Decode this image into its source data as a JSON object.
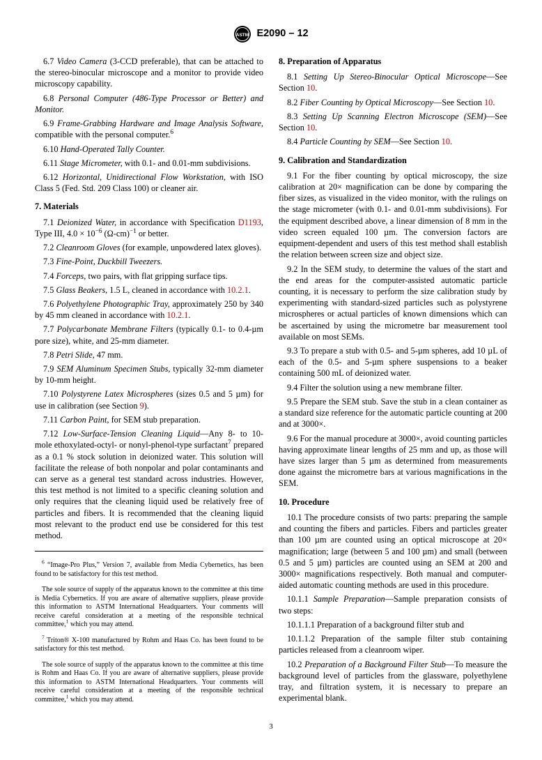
{
  "header": {
    "designation": "E2090 – 12"
  },
  "left": {
    "p6_7": "6.7 <span class=\"italic\">Video Camera</span> (3-CCD preferable)<span class=\"italic\">,</span> that can be attached to the stereo-binocular microscope and a monitor to provide video microscopy capability.",
    "p6_8": "6.8 <span class=\"italic\">Personal Computer (486-Type Processor or Better) and Monitor.</span>",
    "p6_9": "6.9 <span class=\"italic\">Frame-Grabbing Hardware and Image Analysis Software,</span> compatible with the personal computer.<sup>6</sup>",
    "p6_10": "6.10 <span class=\"italic\">Hand-Operated Tally Counter.</span>",
    "p6_11": "6.11 <span class=\"italic\">Stage Micrometer,</span> with 0.1- and 0.01-mm subdivisions.",
    "p6_12": "6.12 <span class=\"italic\">Horizontal, Unidirectional Flow Workstation,</span> with ISO Class 5 (Fed. Std. 209 Class 100) or cleaner air.",
    "s7_head": "7. Materials",
    "p7_1": "7.1 <span class=\"italic\">Deionized Water,</span> in accordance with Specification <span class=\"xref\">D1193</span>, Type III, 4.0 × 10<sup>−6</sup> (Ω-cm)<sup>−1</sup> or better.",
    "p7_2": "7.2 <span class=\"italic\">Cleanroom Gloves</span> (for example, unpowdered latex gloves).",
    "p7_3": "7.3 <span class=\"italic\">Fine-Point, Duckbill Tweezers.</span>",
    "p7_4": "7.4 <span class=\"italic\">Forceps,</span> two pairs, with flat gripping surface tips.",
    "p7_5": "7.5 <span class=\"italic\">Glass Beakers,</span> 1.5 L, cleaned in accordance with <span class=\"xref\">10.2.1</span>.",
    "p7_6": "7.6 <span class=\"italic\">Polyethylene Photographic Tray,</span> approximately 250 by 340 by 45 mm cleaned in accordance with <span class=\"xref\">10.2.1</span>.",
    "p7_7": "7.7 <span class=\"italic\">Polycarbonate Membrane Filters</span> (typically 0.1- to 0.4-µm pore size), white, and 25-mm diameter.",
    "p7_8": "7.8 <span class=\"italic\">Petri Slide,</span> 47 mm.",
    "p7_9": "7.9 <span class=\"italic\">SEM Aluminum Specimen Stubs,</span> typically 32-mm diameter by 10-mm height.",
    "p7_10": "7.10 <span class=\"italic\">Polystyrene Latex Microspheres</span> (sizes 0.5 and 5 µm) for use in calibration (see Section <span class=\"xref\">9</span>).",
    "p7_11": "7.11 <span class=\"italic\">Carbon Paint,</span> for SEM stub preparation.",
    "p7_12": "7.12 <span class=\"italic\">Low-Surface-Tension Cleaning Liquid</span>—Any 8- to 10-mole ethoxylated-octyl- or nonyl-phenol-type surfactant<sup>7</sup> prepared as a 0.1 % stock solution in deionized water. This solution will facilitate the release of both nonpolar and polar contaminants and can serve as a general test standard across industries. However, this test method is not limited to a specific cleaning solution and only requires that the cleaning liquid used be relatively free of particles and fibers. It is recommended that the cleaning liquid most relevant to the product end use be considered for this test method.",
    "fn6a": "<sup>6</sup> “Image-Pro Plus,” Version 7, available from Media Cybernetics, has been found to be satisfactory for this test method.",
    "fn6b": "The sole source of supply of the apparatus known to the committee at this time is Media Cybernetics. If you are aware of alternative suppliers, please provide this information to ASTM International Headquarters. Your comments will receive careful consideration at a meeting of the responsible technical committee,<sup>1</sup> which you may attend.",
    "fn7a": "<sup>7</sup> Triton® X-100 manufactured by Rohm and Haas Co. has been found to be satisfactory for this test method.",
    "fn7b": "The sole source of supply of the apparatus known to the committee at this time is Rohm and Haas Co. If you are aware of alternative suppliers, please provide this information to ASTM International Headquarters. Your comments will receive careful consideration at a meeting of the responsible technical committee,<sup>1</sup> which you may attend."
  },
  "right": {
    "s8_head": "8. Preparation of Apparatus",
    "p8_1": "8.1 <span class=\"italic\">Setting Up Stereo-Binocular Optical Microscope</span>—See Section <span class=\"xref\">10</span>.",
    "p8_2": "8.2 <span class=\"italic\">Fiber Counting by Optical Microscopy</span>—See Section <span class=\"xref\">10</span>.",
    "p8_3": "8.3 <span class=\"italic\">Setting Up Scanning Electron Microscope (SEM)</span>—See Section <span class=\"xref\">10</span>.",
    "p8_4": "8.4 <span class=\"italic\">Particle Counting by SEM</span>—See Section <span class=\"xref\">10</span>.",
    "s9_head": "9. Calibration and Standardization",
    "p9_1": "9.1 For the fiber counting by optical microscopy, the size calibration at 20× magnification can be done by comparing the fiber sizes, as visualized in the video monitor, with the rulings on the stage micrometer (with 0.1- and 0.01-mm subdivisions). For the equipment described above, a linear dimension of 8 mm in the video screen equaled 100 µm. The conversion factors are equipment-dependent and users of this test method shall establish the relation between screen size and object size.",
    "p9_2": "9.2 In the SEM study, to determine the values of the start and the end areas for the computer-assisted automatic particle counting, it is necessary to perform the size calibration study by experimenting with standard-sized particles such as polystyrene microspheres or actual particles of known dimensions which can be ascertained by using the micrometre bar measurement tool available on most SEMs.",
    "p9_3": "9.3 To prepare a stub with 0.5- and 5-µm spheres, add 10 µL of each of the 0.5- and 5-µm sphere suspensions to a beaker containing 500 mL of deionized water.",
    "p9_4": "9.4 Filter the solution using a new membrane filter.",
    "p9_5": "9.5 Prepare the SEM stub. Save the stub in a clean container as a standard size reference for the automatic particle counting at 200 and at 3000×.",
    "p9_6": "9.6 For the manual procedure at 3000×, avoid counting particles having approximate linear lengths of 25 mm and up, as those will have sizes larger than 5 µm as determined from measurements done against the micrometre bars at various magnifications in the SEM.",
    "s10_head": "10. Procedure",
    "p10_1": "10.1 The procedure consists of two parts: preparing the sample and counting the fibers and particles. Fibers and particles greater than 100 µm are counted using an optical microscope at 20× magnification; large (between 5 and 100 µm) and small (between 0.5 and 5 µm) particles are counted using an SEM at 200 and 3000× magnifications respectively. Both manual and computer-aided automatic counting methods are used in this procedure.",
    "p10_1_1": "10.1.1 <span class=\"italic\">Sample Preparation</span>—Sample preparation consists of two steps:",
    "p10_1_1_1": "10.1.1.1 Preparation of a background filter stub and",
    "p10_1_1_2": "10.1.1.2 Preparation of the sample filter stub containing particles released from a cleanroom wiper.",
    "p10_2": "10.2 <span class=\"italic\">Preparation of a Background Filter Stub</span>—To measure the background level of particles from the glassware, polyethylene tray, and filtration system, it is necessary to prepare an experimental blank."
  },
  "pagenum": "3"
}
